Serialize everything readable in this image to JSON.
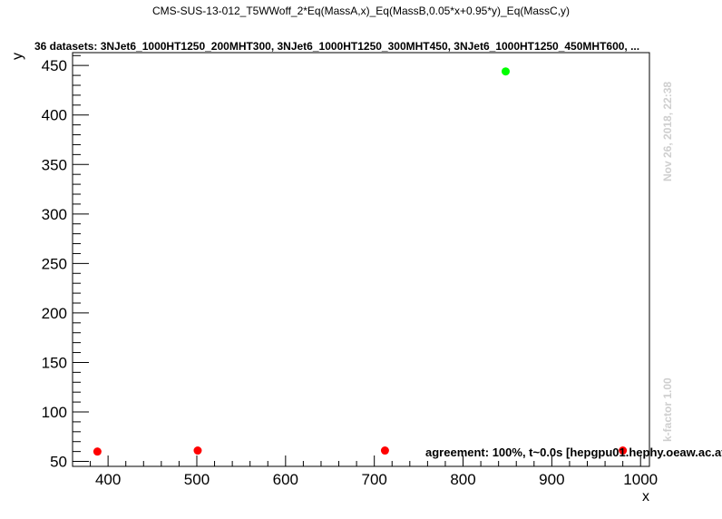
{
  "title": "CMS-SUS-13-012_T5WWoff_2*Eq(MassA,x)_Eq(MassB,0.05*x+0.95*y)_Eq(MassC,y)",
  "subtitle": "36 datasets: 3NJet6_1000HT1250_200MHT300, 3NJet6_1000HT1250_300MHT450, 3NJet6_1000HT1250_450MHT600,  ...",
  "timestamp": "Nov 26, 2018, 22:38",
  "kfactor": "k-factor 1.00",
  "agreement": "agreement: 100%, t~0.0s [hepgpu01.hephy.oeaw.ac.at]",
  "chart_data": {
    "type": "scatter",
    "title": "CMS-SUS-13-012_T5WWoff_2*Eq(MassA,x)_Eq(MassB,0.05*x+0.95*y)_Eq(MassC,y)",
    "xlabel": "x",
    "ylabel": "y",
    "xlim": [
      360,
      1010
    ],
    "ylim": [
      45,
      463
    ],
    "grid": false,
    "xticks": [
      400,
      500,
      600,
      700,
      800,
      900,
      1000
    ],
    "yticks": [
      50,
      100,
      150,
      200,
      250,
      300,
      350,
      400,
      450
    ],
    "series": [
      {
        "color": "#ff0000",
        "points": [
          [
            388,
            60
          ],
          [
            501,
            61
          ],
          [
            712,
            61
          ],
          [
            980,
            61
          ]
        ]
      },
      {
        "color": "#00ff00",
        "points": [
          [
            848,
            444
          ]
        ]
      }
    ]
  }
}
